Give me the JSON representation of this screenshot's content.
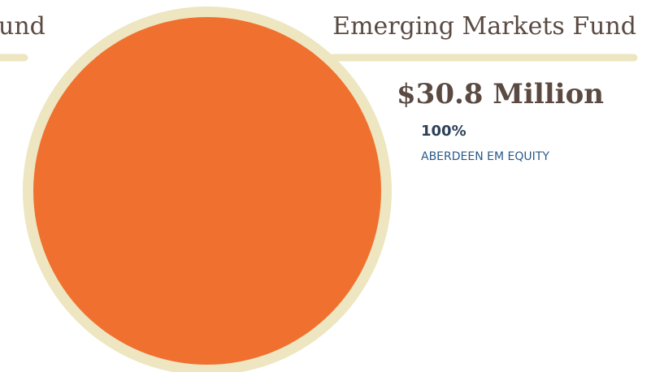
{
  "cropped_heading": "und",
  "chart_data": {
    "type": "pie",
    "title": "Emerging Markets Fund",
    "subtitle": "$30.8 Million",
    "categories": [
      "ABERDEEN EM EQUITY"
    ],
    "values": [
      100
    ],
    "value_labels": [
      "100%"
    ],
    "colors": [
      "#f07030"
    ]
  }
}
